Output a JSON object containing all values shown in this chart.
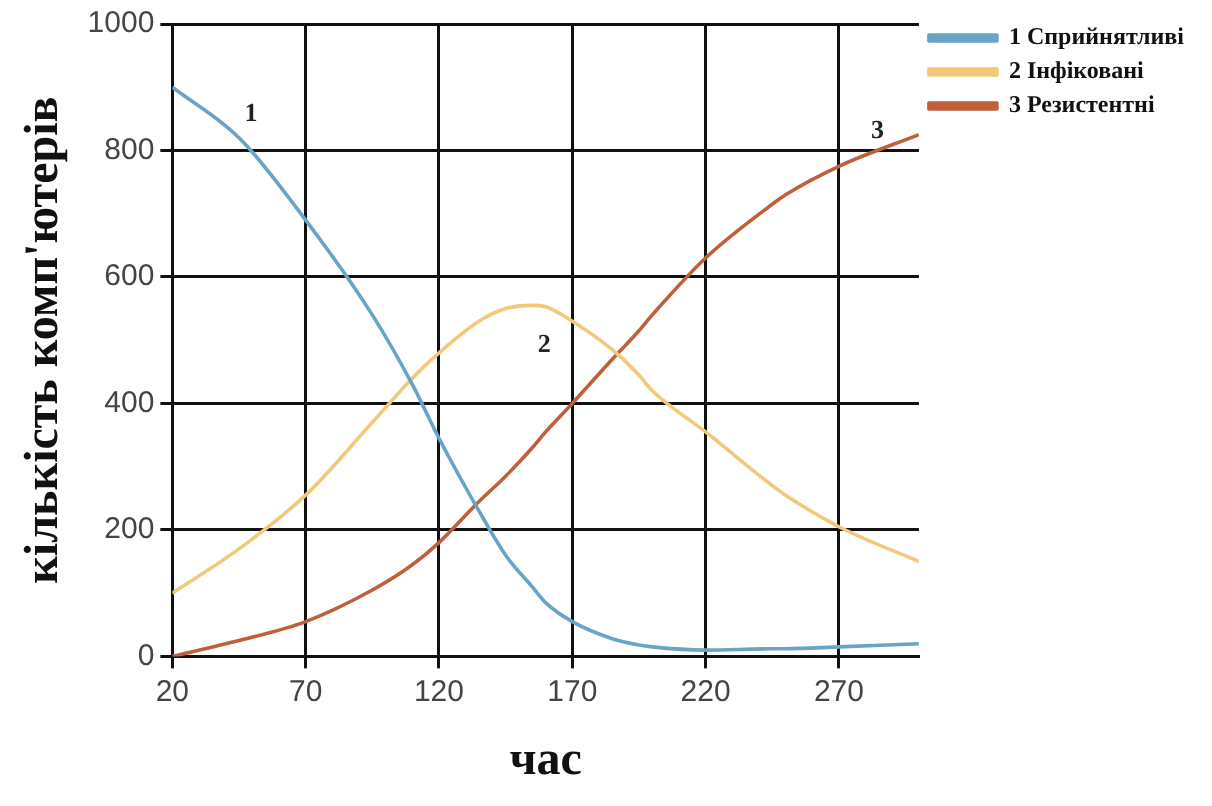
{
  "chart_data": {
    "type": "line",
    "xlabel": "час",
    "ylabel": "кількість комп'ютерів",
    "x": [
      20,
      45,
      70,
      95,
      110,
      120,
      135,
      145,
      155,
      160,
      170,
      185,
      195,
      200,
      220,
      245,
      250,
      270,
      300
    ],
    "series": [
      {
        "name": "1 Сприйнятливі",
        "color": "#6aa3c8",
        "values": [
          900,
          820,
          690,
          540,
          430,
          345,
          230,
          160,
          110,
          85,
          55,
          28,
          18,
          15,
          10,
          12,
          12,
          15,
          20
        ]
      },
      {
        "name": "2 Інфіковані",
        "color": "#f0c97a",
        "values": [
          100,
          170,
          255,
          370,
          440,
          480,
          530,
          550,
          555,
          553,
          530,
          485,
          445,
          420,
          355,
          270,
          255,
          205,
          150
        ]
      },
      {
        "name": "3 Резистентні",
        "color": "#c0603a",
        "values": [
          0,
          25,
          55,
          105,
          145,
          180,
          245,
          285,
          330,
          355,
          400,
          470,
          515,
          540,
          630,
          715,
          730,
          775,
          825
        ]
      }
    ],
    "xlim": [
      20,
      300
    ],
    "xticks": [
      20,
      70,
      120,
      170,
      220,
      270
    ],
    "ylim": [
      0,
      1000
    ],
    "yticks": [
      0,
      200,
      400,
      600,
      800,
      1000
    ],
    "grid": true,
    "legend": "top right",
    "marker": "none",
    "line_style": "solid",
    "annotations": [
      {
        "text": "1",
        "x": 45,
        "y": 820
      },
      {
        "text": "2",
        "x": 155,
        "y": 555
      },
      {
        "text": "3",
        "x": 280,
        "y": 792
      }
    ]
  }
}
